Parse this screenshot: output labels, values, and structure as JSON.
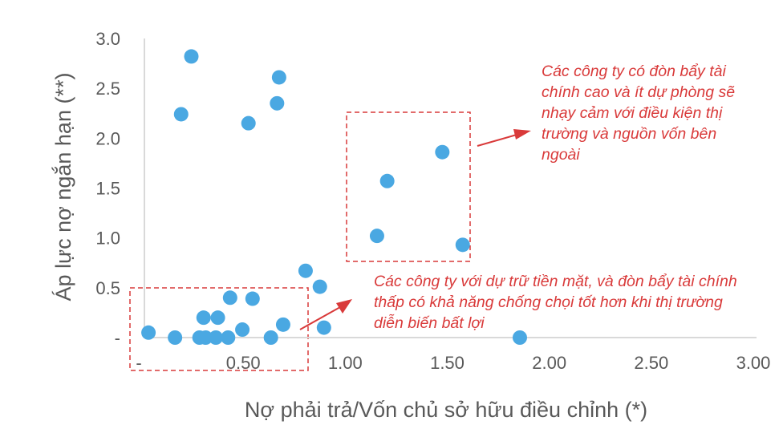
{
  "chart_data": {
    "type": "scatter",
    "xlabel": "Nợ phải trả/Vốn chủ sở hữu điều chỉnh (*)",
    "ylabel": "Áp lực nợ ngắn hạn (**)",
    "xlim": [
      0,
      3
    ],
    "ylim": [
      0,
      3
    ],
    "x_ticks": [
      {
        "value": 0,
        "label": "-"
      },
      {
        "value": 0.5,
        "label": "0.50"
      },
      {
        "value": 1.0,
        "label": "1.00"
      },
      {
        "value": 1.5,
        "label": "1.50"
      },
      {
        "value": 2.0,
        "label": "2.00"
      },
      {
        "value": 2.5,
        "label": "2.50"
      },
      {
        "value": 3.0,
        "label": "3.00"
      }
    ],
    "y_ticks": [
      {
        "value": 0,
        "label": "-"
      },
      {
        "value": 0.5,
        "label": "0.5"
      },
      {
        "value": 1.0,
        "label": "1.0"
      },
      {
        "value": 1.5,
        "label": "1.5"
      },
      {
        "value": 2.0,
        "label": "2.0"
      },
      {
        "value": 2.5,
        "label": "2.5"
      },
      {
        "value": 3.0,
        "label": "3.0"
      }
    ],
    "grid": false,
    "point_color": "#4aa8e2",
    "points": [
      {
        "x": 0.23,
        "y": 2.82
      },
      {
        "x": 0.18,
        "y": 2.24
      },
      {
        "x": 0.51,
        "y": 2.15
      },
      {
        "x": 0.66,
        "y": 2.61
      },
      {
        "x": 0.65,
        "y": 2.35
      },
      {
        "x": 0.79,
        "y": 0.67
      },
      {
        "x": 0.86,
        "y": 0.51
      },
      {
        "x": 0.42,
        "y": 0.4
      },
      {
        "x": 0.53,
        "y": 0.39
      },
      {
        "x": 0.29,
        "y": 0.2
      },
      {
        "x": 0.36,
        "y": 0.2
      },
      {
        "x": 0.68,
        "y": 0.13
      },
      {
        "x": 0.88,
        "y": 0.1
      },
      {
        "x": 0.48,
        "y": 0.08
      },
      {
        "x": 0.02,
        "y": 0.05
      },
      {
        "x": 0.15,
        "y": 0.0
      },
      {
        "x": 0.27,
        "y": 0.0
      },
      {
        "x": 0.3,
        "y": 0.0
      },
      {
        "x": 0.35,
        "y": 0.0
      },
      {
        "x": 0.41,
        "y": 0.0
      },
      {
        "x": 0.62,
        "y": 0.0
      },
      {
        "x": 1.84,
        "y": 0.0
      },
      {
        "x": 1.19,
        "y": 1.57
      },
      {
        "x": 1.46,
        "y": 1.86
      },
      {
        "x": 1.14,
        "y": 1.02
      },
      {
        "x": 1.56,
        "y": 0.93
      }
    ],
    "annotations": [
      {
        "text": "Các công ty có đòn bẩy tài chính cao và ít dự phòng sẽ nhạy cảm với điều kiện thị trường và nguồn vốn bên ngoài"
      },
      {
        "text": "Các công ty với dự trữ tiền mặt, và đòn bẩy tài chính thấp có khả năng chống chọi tốt hơn khi thị trường diễn biến bất lợi"
      }
    ],
    "highlight_color": "#d93a3a"
  }
}
